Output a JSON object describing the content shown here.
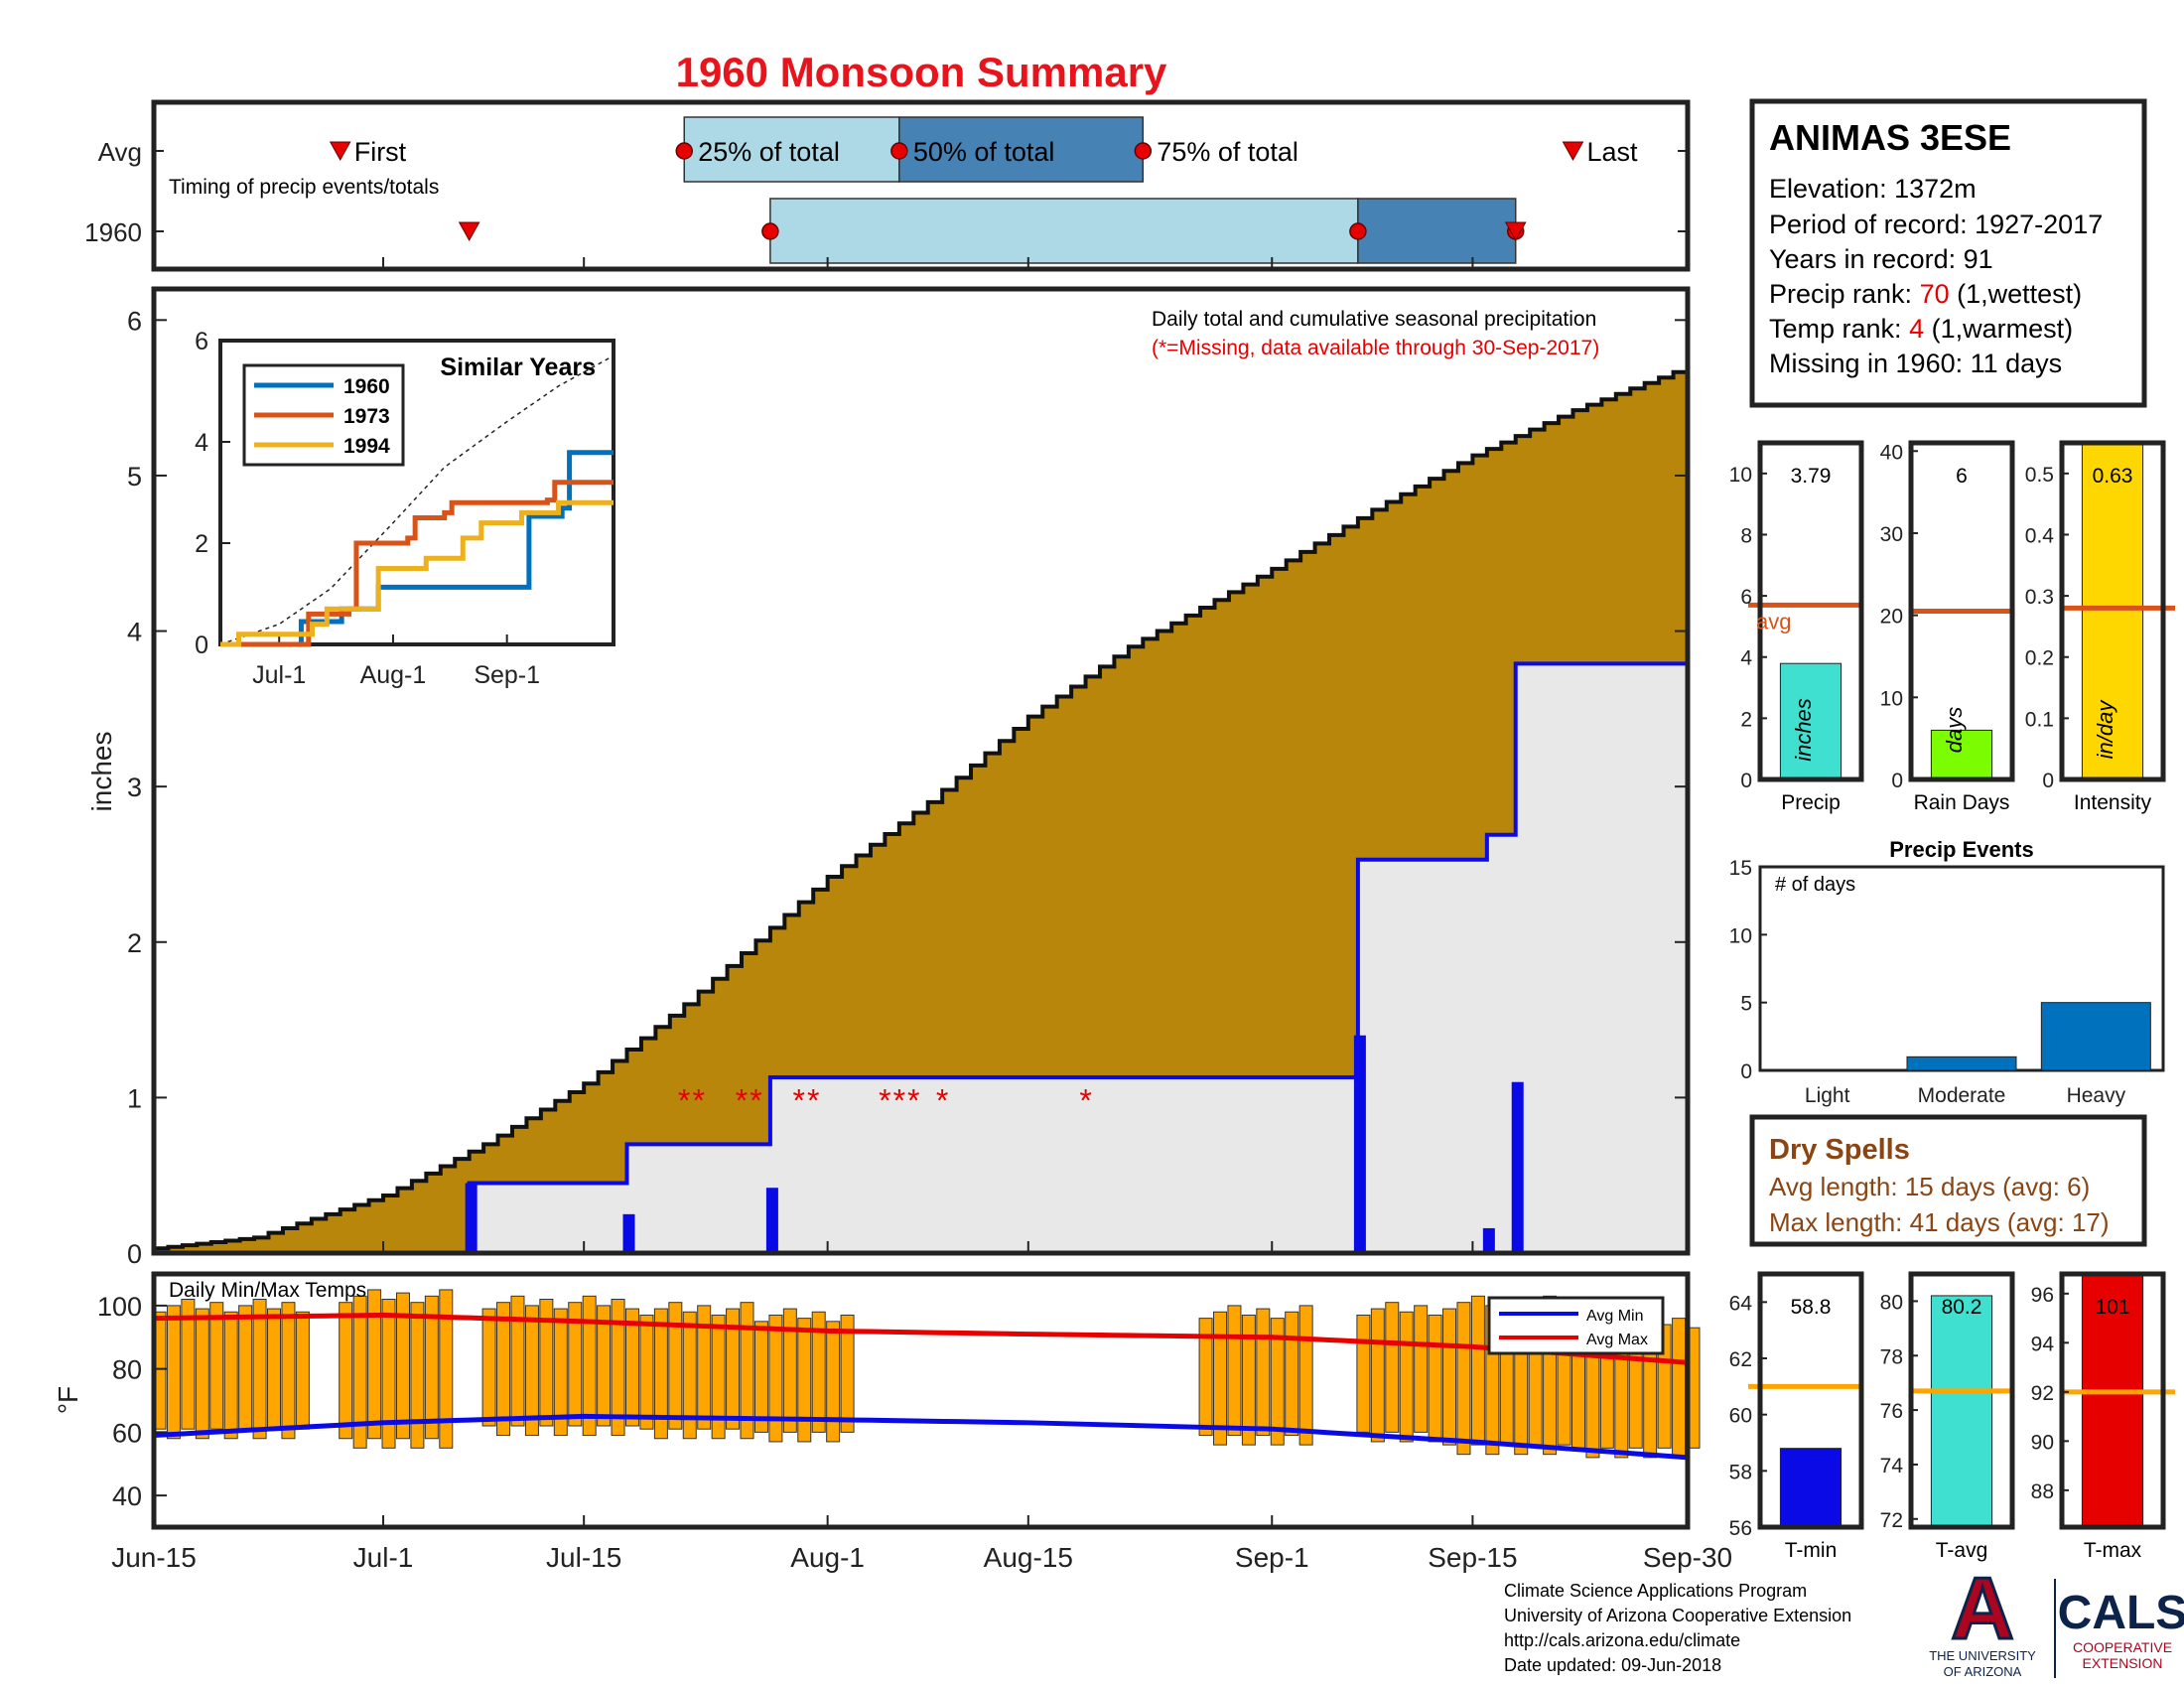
{
  "title": "1960 Monsoon Summary",
  "colors": {
    "title": "#e8141b",
    "cum_avg": "#b8860b",
    "blue": "#0a0ae6",
    "light_blue": "#add8e6",
    "dark_blue": "#4682b4",
    "orange_bar": "#ffa500",
    "red": "#e60000",
    "avg_line": "#d95319",
    "cyan": "#40e0d0",
    "green": "#7cfc00",
    "gold": "#ffd700",
    "grey_fill": "#e8e8e8",
    "event_blue": "#0072bd",
    "dry_spell": "#8b4513",
    "similar_1960": "#0072bd",
    "similar_1973": "#d95319",
    "similar_1994": "#edb120"
  },
  "chart_data": [
    {
      "id": "timing",
      "type": "bar",
      "rows": [
        "Avg",
        "1960"
      ],
      "note": "Timing of precip events/totals",
      "avg": {
        "first": "Jun-28",
        "q25": "Jul-22",
        "q50": "Aug-6",
        "q75": "Aug-23",
        "last": "Sep-22",
        "labels": {
          "first": "First",
          "q25": "25% of total",
          "q50": "50% of total",
          "q75": "75% of total",
          "last": "Last"
        }
      },
      "y1960": {
        "first": "Jul-7",
        "q25": "Jul-28",
        "q50": "Sep-7",
        "q75": "Sep-18",
        "last": "Sep-18"
      }
    },
    {
      "id": "precip",
      "type": "area",
      "title": "Daily total and cumulative seasonal precipitation",
      "subtitle": "(*=Missing, data available through 30-Sep-2017)",
      "ylabel": "inches",
      "ylim": [
        0,
        6.2
      ],
      "yticks": [
        0,
        1,
        2,
        3,
        4,
        5,
        6
      ],
      "x_ticks": [
        "Jun-15",
        "Jul-1",
        "Jul-15",
        "Aug-1",
        "Aug-15",
        "Sep-1",
        "Sep-15",
        "Sep-30"
      ],
      "x_range": [
        "Jun-15",
        "Sep-30"
      ],
      "avg_cumulative": [
        {
          "x": "Jun-15",
          "y": 0.03
        },
        {
          "x": "Jun-22",
          "y": 0.1
        },
        {
          "x": "Jul-1",
          "y": 0.37
        },
        {
          "x": "Jul-8",
          "y": 0.7
        },
        {
          "x": "Jul-15",
          "y": 1.09
        },
        {
          "x": "Jul-22",
          "y": 1.6
        },
        {
          "x": "Aug-1",
          "y": 2.42
        },
        {
          "x": "Aug-8",
          "y": 2.9
        },
        {
          "x": "Aug-15",
          "y": 3.45
        },
        {
          "x": "Aug-22",
          "y": 3.9
        },
        {
          "x": "Sep-1",
          "y": 4.4
        },
        {
          "x": "Sep-8",
          "y": 4.78
        },
        {
          "x": "Sep-15",
          "y": 5.13
        },
        {
          "x": "Sep-22",
          "y": 5.42
        },
        {
          "x": "Sep-30",
          "y": 5.7
        }
      ],
      "cumulative_1960": [
        {
          "x": "Jun-15",
          "y": 0
        },
        {
          "x": "Jul-7",
          "y": 0.45
        },
        {
          "x": "Jul-18",
          "y": 0.7
        },
        {
          "x": "Jul-28",
          "y": 1.13
        },
        {
          "x": "Sep-7",
          "y": 2.53
        },
        {
          "x": "Sep-16",
          "y": 2.69
        },
        {
          "x": "Sep-18",
          "y": 3.79
        },
        {
          "x": "Sep-30",
          "y": 3.79
        }
      ],
      "daily_1960": [
        {
          "x": "Jul-7",
          "y": 0.45
        },
        {
          "x": "Jul-18",
          "y": 0.25
        },
        {
          "x": "Jul-28",
          "y": 0.42
        },
        {
          "x": "Sep-7",
          "y": 1.4
        },
        {
          "x": "Sep-16",
          "y": 0.16
        },
        {
          "x": "Sep-18",
          "y": 1.1
        }
      ],
      "missing": [
        "Jul-22",
        "Jul-23",
        "Jul-26",
        "Jul-27",
        "Jul-30",
        "Jul-31",
        "Aug-5",
        "Aug-6",
        "Aug-7",
        "Aug-9",
        "Aug-19"
      ]
    },
    {
      "id": "similar_years",
      "type": "line",
      "title": "Similar Years",
      "ylim": [
        0,
        6
      ],
      "yticks": [
        0,
        2,
        4,
        6
      ],
      "x_ticks": [
        "Jul-1",
        "Aug-1",
        "Sep-1"
      ],
      "x_range": [
        "Jun-15",
        "Sep-30"
      ],
      "avg": [
        {
          "x": "Jun-15",
          "y": 0
        },
        {
          "x": "Jul-1",
          "y": 0.4
        },
        {
          "x": "Jul-15",
          "y": 1.1
        },
        {
          "x": "Aug-1",
          "y": 2.4
        },
        {
          "x": "Aug-15",
          "y": 3.5
        },
        {
          "x": "Sep-1",
          "y": 4.4
        },
        {
          "x": "Sep-15",
          "y": 5.1
        },
        {
          "x": "Sep-30",
          "y": 5.7
        }
      ],
      "series": [
        {
          "name": "1960",
          "points": [
            {
              "x": "Jun-15",
              "y": 0
            },
            {
              "x": "Jul-7",
              "y": 0.45
            },
            {
              "x": "Jul-18",
              "y": 0.7
            },
            {
              "x": "Jul-28",
              "y": 1.13
            },
            {
              "x": "Sep-7",
              "y": 2.53
            },
            {
              "x": "Sep-16",
              "y": 2.69
            },
            {
              "x": "Sep-18",
              "y": 3.79
            },
            {
              "x": "Sep-30",
              "y": 3.79
            }
          ]
        },
        {
          "name": "1973",
          "points": [
            {
              "x": "Jun-15",
              "y": 0
            },
            {
              "x": "Jul-7",
              "y": 0
            },
            {
              "x": "Jul-9",
              "y": 0.6
            },
            {
              "x": "Jul-20",
              "y": 0.7
            },
            {
              "x": "Jul-22",
              "y": 2.0
            },
            {
              "x": "Aug-5",
              "y": 2.1
            },
            {
              "x": "Aug-7",
              "y": 2.5
            },
            {
              "x": "Aug-15",
              "y": 2.6
            },
            {
              "x": "Aug-17",
              "y": 2.8
            },
            {
              "x": "Sep-12",
              "y": 2.85
            },
            {
              "x": "Sep-14",
              "y": 3.2
            },
            {
              "x": "Sep-30",
              "y": 3.2
            }
          ]
        },
        {
          "name": "1994",
          "points": [
            {
              "x": "Jun-15",
              "y": 0
            },
            {
              "x": "Jun-20",
              "y": 0.2
            },
            {
              "x": "Jul-10",
              "y": 0.4
            },
            {
              "x": "Jul-14",
              "y": 0.7
            },
            {
              "x": "Jul-28",
              "y": 1.5
            },
            {
              "x": "Aug-10",
              "y": 1.7
            },
            {
              "x": "Aug-20",
              "y": 2.1
            },
            {
              "x": "Aug-25",
              "y": 2.4
            },
            {
              "x": "Sep-5",
              "y": 2.6
            },
            {
              "x": "Sep-15",
              "y": 2.8
            },
            {
              "x": "Sep-30",
              "y": 2.8
            }
          ]
        }
      ]
    },
    {
      "id": "temps",
      "type": "bar",
      "title": "Daily Min/Max Temps",
      "ylabel": "°F",
      "ylim": [
        30,
        110
      ],
      "yticks": [
        40,
        60,
        80,
        100
      ],
      "legend": [
        "Avg Min",
        "Avg Max"
      ],
      "avg_min": [
        {
          "x": "Jun-15",
          "y": 59
        },
        {
          "x": "Jul-1",
          "y": 63
        },
        {
          "x": "Jul-15",
          "y": 65
        },
        {
          "x": "Aug-1",
          "y": 64
        },
        {
          "x": "Aug-15",
          "y": 63
        },
        {
          "x": "Sep-1",
          "y": 61
        },
        {
          "x": "Sep-15",
          "y": 57
        },
        {
          "x": "Sep-30",
          "y": 52
        }
      ],
      "avg_max": [
        {
          "x": "Jun-15",
          "y": 96
        },
        {
          "x": "Jul-1",
          "y": 97
        },
        {
          "x": "Jul-15",
          "y": 95
        },
        {
          "x": "Aug-1",
          "y": 92
        },
        {
          "x": "Aug-15",
          "y": 91
        },
        {
          "x": "Sep-1",
          "y": 90
        },
        {
          "x": "Sep-15",
          "y": 87
        },
        {
          "x": "Sep-30",
          "y": 82
        }
      ],
      "daily_ranges": [
        {
          "start": "Jun-15",
          "end": "Jun-25",
          "lo": 59,
          "hi": 100
        },
        {
          "start": "Jun-28",
          "end": "Jul-5",
          "lo": 56,
          "hi": 103
        },
        {
          "start": "Jul-8",
          "end": "Jul-18",
          "lo": 60,
          "hi": 101
        },
        {
          "start": "Jul-19",
          "end": "Jul-26",
          "lo": 59,
          "hi": 99
        },
        {
          "start": "Jul-27",
          "end": "Aug-2",
          "lo": 58,
          "hi": 97
        },
        {
          "start": "Aug-27",
          "end": "Sep-3",
          "lo": 57,
          "hi": 98
        },
        {
          "start": "Sep-7",
          "end": "Sep-12",
          "lo": 58,
          "hi": 99
        },
        {
          "start": "Sep-13",
          "end": "Sep-21",
          "lo": 54,
          "hi": 101
        },
        {
          "start": "Sep-22",
          "end": "Sep-30",
          "lo": 53,
          "hi": 94
        }
      ]
    },
    {
      "id": "precip_bar",
      "type": "bar",
      "label": "Precip",
      "value": 3.79,
      "value_label": "3.79",
      "avg": 5.7,
      "avg_label": "avg",
      "unit": "inches",
      "ylim": [
        0,
        11
      ],
      "yticks": [
        0,
        2,
        4,
        6,
        8,
        10
      ]
    },
    {
      "id": "raindays_bar",
      "type": "bar",
      "label": "Rain Days",
      "value": 6,
      "value_label": "6",
      "avg": 20.5,
      "unit": "days",
      "ylim": [
        0,
        41
      ],
      "yticks": [
        0,
        10,
        20,
        30,
        40
      ]
    },
    {
      "id": "intensity_bar",
      "type": "bar",
      "label": "Intensity",
      "value": 0.63,
      "value_label": "0.63",
      "avg": 0.28,
      "unit": "in/day",
      "ylim": [
        0,
        0.55
      ],
      "yticks": [
        0,
        0.1,
        0.2,
        0.3,
        0.4,
        0.5
      ],
      "ytick_labels": [
        "0",
        "0.1",
        "0.2",
        "0.3",
        "0.4",
        "0.5"
      ]
    },
    {
      "id": "precip_events",
      "type": "bar",
      "title": "Precip Events",
      "ylabel": "# of days",
      "categories": [
        "Light",
        "Moderate",
        "Heavy"
      ],
      "values": [
        0,
        1,
        5
      ],
      "ylim": [
        0,
        15
      ],
      "yticks": [
        0,
        5,
        10,
        15
      ]
    },
    {
      "id": "tmin_bar",
      "type": "bar",
      "label": "T-min",
      "value": 58.8,
      "value_label": "58.8",
      "avg": 61,
      "ylim": [
        56,
        65
      ],
      "yticks": [
        56,
        58,
        60,
        62,
        64
      ]
    },
    {
      "id": "tavg_bar",
      "type": "bar",
      "label": "T-avg",
      "value": 80.2,
      "value_label": "80.2",
      "avg": 76.7,
      "ylim": [
        71.7,
        81
      ],
      "yticks": [
        72,
        74,
        76,
        78,
        80
      ]
    },
    {
      "id": "tmax_bar",
      "type": "bar",
      "label": "T-max",
      "value": 101,
      "value_label": "101",
      "avg": 92,
      "ylim": [
        86.5,
        96.8
      ],
      "yticks": [
        88,
        90,
        92,
        94,
        96
      ]
    }
  ],
  "station": {
    "name": "ANIMAS 3ESE",
    "elevation": "Elevation: 1372m",
    "period": "Period of record: 1927-2017",
    "years": "Years in record: 91",
    "precip_rank_pre": "Precip rank: ",
    "precip_rank": "70",
    "precip_rank_post": " (1,wettest)",
    "temp_rank_pre": "Temp rank: ",
    "temp_rank": "4",
    "temp_rank_post": " (1,warmest)",
    "missing": "Missing in 1960: 11 days"
  },
  "dry_spells": {
    "title": "Dry Spells",
    "avg": "Avg length: 15 days (avg: 6)",
    "max": "Max length: 41 days (avg: 17)"
  },
  "footer": {
    "line1": "Climate Science Applications Program",
    "line2": "University of Arizona Cooperative Extension",
    "line3": "http://cals.arizona.edu/climate",
    "line4": " Date updated: 09-Jun-2018"
  },
  "logos": {
    "ua_letter": "A",
    "ua_line1": "THE UNIVERSITY",
    "ua_line2": "OF ARIZONA",
    "cals": "CALS",
    "cals_line1": "COOPERATIVE",
    "cals_line2": "EXTENSION"
  }
}
